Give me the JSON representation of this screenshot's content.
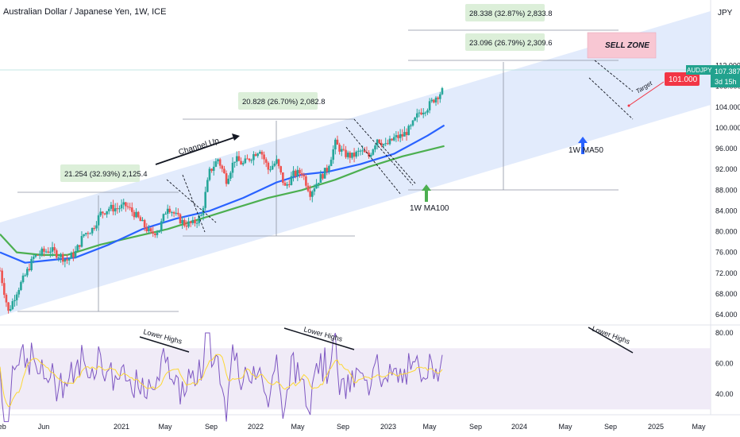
{
  "header": {
    "title": "Australian Dollar / Japanese Yen, 1W, ICE",
    "currency": "JPY"
  },
  "colors": {
    "up_candle": "#26a69a",
    "down_candle": "#ef5350",
    "ma100": "#2962ff",
    "ma50": "#4caf50",
    "channel_fill": "#dbe6fb",
    "rsi_line": "#7e57c2",
    "rsi_ma": "#fdd835",
    "rsi_band": "#ede7f6",
    "sell_zone": "#f8c7d3",
    "measure_box": "#dcefd9",
    "target_badge": "#f23645",
    "price_badge": "#22a28e"
  },
  "chart_data": {
    "type": "candlestick",
    "symbol": "AUDJPY",
    "timeframe": "1W",
    "y_ticks": [
      64,
      68,
      72,
      76,
      80,
      84,
      88,
      92,
      96,
      100,
      104,
      108,
      112
    ],
    "y_tick_labels": [
      "64.000",
      "68.000",
      "72.000",
      "76.000",
      "80.000",
      "84.000",
      "88.000",
      "92.000",
      "96.000",
      "100.000",
      "104.000",
      "108.000",
      "112.000"
    ],
    "x_tick_labels": [
      "Feb",
      "Jun",
      "2021",
      "May",
      "Sep",
      "2022",
      "May",
      "Sep",
      "2023",
      "May",
      "Sep",
      "2024",
      "May",
      "Sep",
      "2025",
      "May"
    ],
    "price_path": [
      [
        "2020-02",
        72.5
      ],
      [
        "2020-03",
        64.5
      ],
      [
        "2020-04",
        68.5
      ],
      [
        "2020-05",
        71.5
      ],
      [
        "2020-06",
        75.0
      ],
      [
        "2020-07",
        76.0
      ],
      [
        "2020-08",
        76.5
      ],
      [
        "2020-09",
        75.5
      ],
      [
        "2020-10",
        74.5
      ],
      [
        "2020-11",
        76.0
      ],
      [
        "2020-12",
        79.5
      ],
      [
        "2021-01",
        80.5
      ],
      [
        "2021-02",
        83.5
      ],
      [
        "2021-03",
        84.5
      ],
      [
        "2021-04",
        84.5
      ],
      [
        "2021-05",
        85.0
      ],
      [
        "2021-06",
        83.5
      ],
      [
        "2021-07",
        81.5
      ],
      [
        "2021-08",
        79.5
      ],
      [
        "2021-09",
        80.5
      ],
      [
        "2021-10",
        85.0
      ],
      [
        "2021-11",
        83.0
      ],
      [
        "2021-12",
        81.5
      ],
      [
        "2022-01",
        81.5
      ],
      [
        "2022-02",
        83.0
      ],
      [
        "2022-03",
        91.5
      ],
      [
        "2022-04",
        94.0
      ],
      [
        "2022-05",
        90.0
      ],
      [
        "2022-06",
        94.0
      ],
      [
        "2022-07",
        93.0
      ],
      [
        "2022-08",
        94.5
      ],
      [
        "2022-09",
        96.0
      ],
      [
        "2022-10",
        92.0
      ],
      [
        "2022-11",
        93.5
      ],
      [
        "2022-12",
        88.5
      ],
      [
        "2023-01",
        91.0
      ],
      [
        "2023-02",
        91.5
      ],
      [
        "2023-03",
        87.5
      ],
      [
        "2023-04",
        90.0
      ],
      [
        "2023-05",
        92.0
      ],
      [
        "2023-06",
        97.0
      ],
      [
        "2023-07",
        95.0
      ],
      [
        "2023-08",
        94.5
      ],
      [
        "2023-09",
        95.5
      ],
      [
        "2023-10",
        94.5
      ],
      [
        "2023-11",
        98.0
      ],
      [
        "2023-12",
        96.5
      ],
      [
        "2024-01",
        98.0
      ],
      [
        "2024-02",
        98.5
      ],
      [
        "2024-03",
        100.0
      ],
      [
        "2024-04",
        103.0
      ],
      [
        "2024-05",
        104.0
      ],
      [
        "2024-06",
        106.0
      ],
      [
        "2024-07",
        107.4
      ]
    ],
    "ma100_path": [
      [
        "2020-02",
        76.0
      ],
      [
        "2020-05",
        74.0
      ],
      [
        "2020-08",
        74.5
      ],
      [
        "2020-11",
        75.0
      ],
      [
        "2021-03",
        77.5
      ],
      [
        "2021-07",
        80.5
      ],
      [
        "2021-11",
        82.5
      ],
      [
        "2022-03",
        84.0
      ],
      [
        "2022-07",
        86.5
      ],
      [
        "2022-11",
        89.5
      ],
      [
        "2023-02",
        91.0
      ],
      [
        "2023-05",
        91.5
      ],
      [
        "2023-09",
        93.0
      ],
      [
        "2024-01",
        95.0
      ],
      [
        "2024-05",
        98.5
      ],
      [
        "2024-07",
        100.5
      ]
    ],
    "ma50_path": [
      [
        "2020-02",
        79.5
      ],
      [
        "2020-04",
        76.0
      ],
      [
        "2020-07",
        75.5
      ],
      [
        "2020-10",
        75.5
      ],
      [
        "2021-02",
        77.5
      ],
      [
        "2021-06",
        79.0
      ],
      [
        "2021-10",
        80.5
      ],
      [
        "2022-02",
        82.5
      ],
      [
        "2022-06",
        84.5
      ],
      [
        "2022-10",
        86.5
      ],
      [
        "2023-02",
        88.0
      ],
      [
        "2023-06",
        90.0
      ],
      [
        "2023-10",
        92.5
      ],
      [
        "2024-02",
        94.5
      ],
      [
        "2024-07",
        96.5
      ]
    ],
    "rsi": {
      "ticks": [
        40,
        60,
        80
      ],
      "tick_labels": [
        "40.00",
        "60.00",
        "80.00"
      ],
      "band": [
        30,
        70
      ]
    },
    "current_price": "107.387",
    "price_label": "AUDJPY",
    "countdown": "3d 15h",
    "target_price": "101.000",
    "annotations": {
      "channel": "Channel Up",
      "target": "Target",
      "sell_zone": "SELL ZONE",
      "ma100": "1W MA100",
      "ma50": "1W MA50",
      "lower_highs": "Lower Highs"
    },
    "measurements": [
      "21.254 (32.93%) 2,125.4",
      "20.828 (26.70%) 2,082.8",
      "23.096 (26.79%) 2,309.6",
      "28.338 (32.87%) 2,833.8"
    ]
  }
}
